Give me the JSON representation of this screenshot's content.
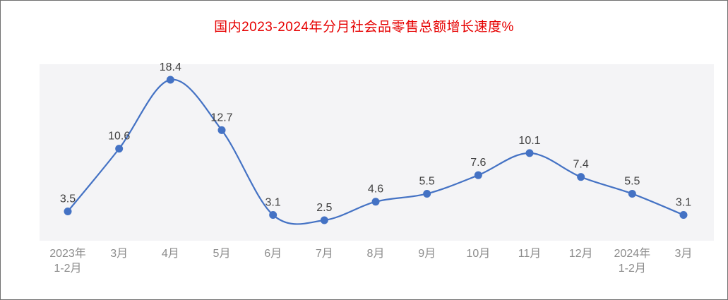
{
  "chart_data": {
    "type": "line",
    "title": "国内2023-2024年分月社会品零售总额增长速度%",
    "categories": [
      "2023年\n1-2月",
      "3月",
      "4月",
      "5月",
      "6月",
      "7月",
      "8月",
      "9月",
      "10月",
      "11月",
      "12月",
      "2024年\n1-2月",
      "3月"
    ],
    "values": [
      3.5,
      10.6,
      18.4,
      12.7,
      3.1,
      2.5,
      4.6,
      5.5,
      7.6,
      10.1,
      7.4,
      5.5,
      3.1
    ],
    "xlabel": "",
    "ylabel": "",
    "ylim": [
      0,
      20
    ],
    "grid": false,
    "legend_position": "none",
    "data_labels_shown": true
  },
  "colors": {
    "title": "#e60000",
    "line": "#4472c4",
    "marker": "#4472c4",
    "value_label": "#404040",
    "axis_label": "#8c8c8c",
    "plot_band": "#f4f4f6",
    "frame_border": "#707070"
  }
}
